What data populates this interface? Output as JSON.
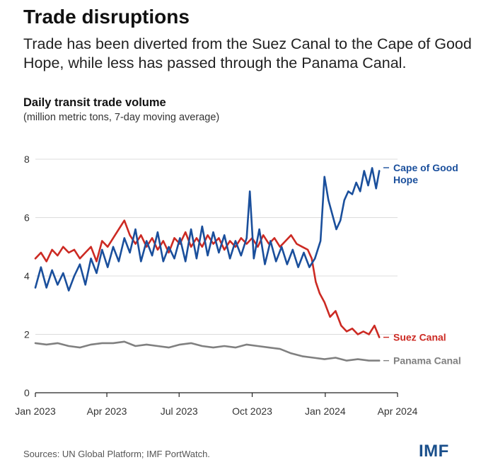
{
  "header": {
    "title": "Trade disruptions",
    "subtitle": "Trade has been diverted from the Suez Canal to the Cape of Good Hope, while less has passed through the Panama Canal."
  },
  "footer": {
    "source": "Sources: UN Global Platform; IMF PortWatch.",
    "logo": "IMF"
  },
  "chart_data": {
    "type": "line",
    "title": "Daily transit trade volume",
    "subtitle": "(million metric tons, 7-day moving average)",
    "xlabel": "",
    "ylabel": "",
    "ylim": [
      0,
      8
    ],
    "yticks": [
      "0",
      "2",
      "4",
      "6",
      "8"
    ],
    "xlim": [
      "2023-01-01",
      "2024-04-01"
    ],
    "xticks": [
      {
        "date": "2023-01-01",
        "label": "Jan 2023"
      },
      {
        "date": "2023-04-01",
        "label": "Apr 2023"
      },
      {
        "date": "2023-07-01",
        "label": "Jul 2023"
      },
      {
        "date": "2023-10-01",
        "label": "Oct 2023"
      },
      {
        "date": "2024-01-01",
        "label": "Jan 2024"
      },
      {
        "date": "2024-04-01",
        "label": "Apr 2024"
      }
    ],
    "grid": true,
    "series": [
      {
        "name": "Cape of Good Hope",
        "label_lines": [
          "Cape of Good",
          "Hope"
        ],
        "color": "#1a4f9c",
        "points": [
          [
            "2023-01-01",
            3.6
          ],
          [
            "2023-01-08",
            4.3
          ],
          [
            "2023-01-15",
            3.6
          ],
          [
            "2023-01-22",
            4.2
          ],
          [
            "2023-01-29",
            3.7
          ],
          [
            "2023-02-05",
            4.1
          ],
          [
            "2023-02-12",
            3.5
          ],
          [
            "2023-02-19",
            4.0
          ],
          [
            "2023-02-26",
            4.4
          ],
          [
            "2023-03-05",
            3.7
          ],
          [
            "2023-03-12",
            4.6
          ],
          [
            "2023-03-19",
            4.1
          ],
          [
            "2023-03-26",
            4.9
          ],
          [
            "2023-04-02",
            4.3
          ],
          [
            "2023-04-09",
            5.0
          ],
          [
            "2023-04-16",
            4.5
          ],
          [
            "2023-04-23",
            5.3
          ],
          [
            "2023-04-30",
            4.8
          ],
          [
            "2023-05-07",
            5.6
          ],
          [
            "2023-05-14",
            4.5
          ],
          [
            "2023-05-21",
            5.2
          ],
          [
            "2023-05-28",
            4.7
          ],
          [
            "2023-06-04",
            5.5
          ],
          [
            "2023-06-11",
            4.5
          ],
          [
            "2023-06-18",
            5.0
          ],
          [
            "2023-06-25",
            4.6
          ],
          [
            "2023-07-02",
            5.3
          ],
          [
            "2023-07-09",
            4.5
          ],
          [
            "2023-07-16",
            5.6
          ],
          [
            "2023-07-23",
            4.6
          ],
          [
            "2023-07-30",
            5.7
          ],
          [
            "2023-08-06",
            4.7
          ],
          [
            "2023-08-13",
            5.5
          ],
          [
            "2023-08-20",
            4.8
          ],
          [
            "2023-08-27",
            5.4
          ],
          [
            "2023-09-03",
            4.6
          ],
          [
            "2023-09-10",
            5.2
          ],
          [
            "2023-09-17",
            4.7
          ],
          [
            "2023-09-24",
            5.3
          ],
          [
            "2023-09-28",
            6.9
          ],
          [
            "2023-10-03",
            4.6
          ],
          [
            "2023-10-10",
            5.6
          ],
          [
            "2023-10-17",
            4.4
          ],
          [
            "2023-10-24",
            5.2
          ],
          [
            "2023-10-31",
            4.5
          ],
          [
            "2023-11-07",
            5.0
          ],
          [
            "2023-11-14",
            4.4
          ],
          [
            "2023-11-21",
            4.9
          ],
          [
            "2023-11-28",
            4.3
          ],
          [
            "2023-12-05",
            4.8
          ],
          [
            "2023-12-12",
            4.3
          ],
          [
            "2023-12-19",
            4.6
          ],
          [
            "2023-12-26",
            5.2
          ],
          [
            "2023-12-31",
            7.4
          ],
          [
            "2024-01-05",
            6.6
          ],
          [
            "2024-01-10",
            6.1
          ],
          [
            "2024-01-15",
            5.6
          ],
          [
            "2024-01-20",
            5.9
          ],
          [
            "2024-01-25",
            6.6
          ],
          [
            "2024-01-30",
            6.9
          ],
          [
            "2024-02-04",
            6.8
          ],
          [
            "2024-02-09",
            7.2
          ],
          [
            "2024-02-14",
            6.9
          ],
          [
            "2024-02-19",
            7.6
          ],
          [
            "2024-02-24",
            7.1
          ],
          [
            "2024-02-29",
            7.7
          ],
          [
            "2024-03-05",
            7.0
          ],
          [
            "2024-03-09",
            7.6
          ]
        ]
      },
      {
        "name": "Suez Canal",
        "label_lines": [
          "Suez Canal"
        ],
        "color": "#cc2a23",
        "points": [
          [
            "2023-01-01",
            4.6
          ],
          [
            "2023-01-08",
            4.8
          ],
          [
            "2023-01-15",
            4.5
          ],
          [
            "2023-01-22",
            4.9
          ],
          [
            "2023-01-29",
            4.7
          ],
          [
            "2023-02-05",
            5.0
          ],
          [
            "2023-02-12",
            4.8
          ],
          [
            "2023-02-19",
            4.9
          ],
          [
            "2023-02-26",
            4.6
          ],
          [
            "2023-03-05",
            4.8
          ],
          [
            "2023-03-12",
            5.0
          ],
          [
            "2023-03-19",
            4.5
          ],
          [
            "2023-03-26",
            5.2
          ],
          [
            "2023-04-02",
            5.0
          ],
          [
            "2023-04-09",
            5.3
          ],
          [
            "2023-04-16",
            5.6
          ],
          [
            "2023-04-23",
            5.9
          ],
          [
            "2023-04-30",
            5.4
          ],
          [
            "2023-05-07",
            5.1
          ],
          [
            "2023-05-14",
            5.4
          ],
          [
            "2023-05-21",
            5.0
          ],
          [
            "2023-05-28",
            5.3
          ],
          [
            "2023-06-04",
            4.9
          ],
          [
            "2023-06-11",
            5.2
          ],
          [
            "2023-06-18",
            4.8
          ],
          [
            "2023-06-25",
            5.3
          ],
          [
            "2023-07-02",
            5.1
          ],
          [
            "2023-07-09",
            5.5
          ],
          [
            "2023-07-16",
            5.0
          ],
          [
            "2023-07-23",
            5.3
          ],
          [
            "2023-07-30",
            5.0
          ],
          [
            "2023-08-06",
            5.4
          ],
          [
            "2023-08-13",
            5.1
          ],
          [
            "2023-08-20",
            5.3
          ],
          [
            "2023-08-27",
            4.9
          ],
          [
            "2023-09-03",
            5.2
          ],
          [
            "2023-09-10",
            5.0
          ],
          [
            "2023-09-17",
            5.3
          ],
          [
            "2023-09-24",
            5.1
          ],
          [
            "2023-10-01",
            5.3
          ],
          [
            "2023-10-08",
            5.0
          ],
          [
            "2023-10-15",
            5.4
          ],
          [
            "2023-10-22",
            5.1
          ],
          [
            "2023-10-29",
            5.3
          ],
          [
            "2023-11-05",
            5.0
          ],
          [
            "2023-11-12",
            5.2
          ],
          [
            "2023-11-19",
            5.4
          ],
          [
            "2023-11-26",
            5.1
          ],
          [
            "2023-12-03",
            5.0
          ],
          [
            "2023-12-10",
            4.9
          ],
          [
            "2023-12-15",
            4.6
          ],
          [
            "2023-12-20",
            3.8
          ],
          [
            "2023-12-25",
            3.4
          ],
          [
            "2023-12-31",
            3.1
          ],
          [
            "2024-01-07",
            2.6
          ],
          [
            "2024-01-14",
            2.8
          ],
          [
            "2024-01-21",
            2.3
          ],
          [
            "2024-01-28",
            2.1
          ],
          [
            "2024-02-04",
            2.2
          ],
          [
            "2024-02-11",
            2.0
          ],
          [
            "2024-02-18",
            2.1
          ],
          [
            "2024-02-25",
            2.0
          ],
          [
            "2024-03-03",
            2.3
          ],
          [
            "2024-03-09",
            1.9
          ]
        ]
      },
      {
        "name": "Panama Canal",
        "label_lines": [
          "Panama Canal"
        ],
        "color": "#808080",
        "points": [
          [
            "2023-01-01",
            1.7
          ],
          [
            "2023-01-15",
            1.65
          ],
          [
            "2023-01-29",
            1.7
          ],
          [
            "2023-02-12",
            1.6
          ],
          [
            "2023-02-26",
            1.55
          ],
          [
            "2023-03-12",
            1.65
          ],
          [
            "2023-03-26",
            1.7
          ],
          [
            "2023-04-09",
            1.7
          ],
          [
            "2023-04-23",
            1.75
          ],
          [
            "2023-05-07",
            1.6
          ],
          [
            "2023-05-21",
            1.65
          ],
          [
            "2023-06-04",
            1.6
          ],
          [
            "2023-06-18",
            1.55
          ],
          [
            "2023-07-02",
            1.65
          ],
          [
            "2023-07-16",
            1.7
          ],
          [
            "2023-07-30",
            1.6
          ],
          [
            "2023-08-13",
            1.55
          ],
          [
            "2023-08-27",
            1.6
          ],
          [
            "2023-09-10",
            1.55
          ],
          [
            "2023-09-24",
            1.65
          ],
          [
            "2023-10-08",
            1.6
          ],
          [
            "2023-10-22",
            1.55
          ],
          [
            "2023-11-05",
            1.5
          ],
          [
            "2023-11-19",
            1.35
          ],
          [
            "2023-12-03",
            1.25
          ],
          [
            "2023-12-17",
            1.2
          ],
          [
            "2023-12-31",
            1.15
          ],
          [
            "2024-01-14",
            1.2
          ],
          [
            "2024-01-28",
            1.1
          ],
          [
            "2024-02-11",
            1.15
          ],
          [
            "2024-02-25",
            1.1
          ],
          [
            "2024-03-09",
            1.1
          ]
        ]
      }
    ]
  }
}
